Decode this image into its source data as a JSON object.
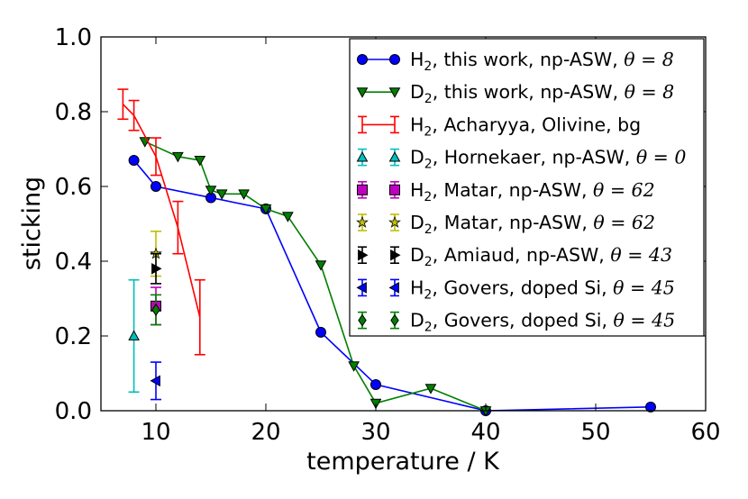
{
  "chart_data": {
    "type": "line",
    "title": "",
    "xlabel": "temperature / K",
    "ylabel": "sticking",
    "xlim": [
      5,
      60
    ],
    "ylim": [
      0.0,
      1.0
    ],
    "xticks": [
      10,
      20,
      30,
      40,
      50,
      60
    ],
    "xtick_labels": [
      "10",
      "20",
      "30",
      "40",
      "50",
      "60"
    ],
    "yticks": [
      0.0,
      0.2,
      0.4,
      0.6,
      0.8,
      1.0
    ],
    "ytick_labels": [
      "0.0",
      "0.2",
      "0.4",
      "0.6",
      "0.8",
      "1.0"
    ],
    "grid": false,
    "legend_position": "top-right",
    "series": [
      {
        "name": "H2, this work, np-ASW, θ = 8",
        "legend": {
          "species": "H",
          "sub": "2",
          "rest": ", this work, np-ASW, ",
          "theta": "θ = 8"
        },
        "color": "#0000ff",
        "marker": "circle",
        "line": true,
        "errorbars": false,
        "x": [
          8,
          10,
          15,
          20,
          25,
          30,
          40,
          55
        ],
        "y": [
          0.67,
          0.6,
          0.57,
          0.54,
          0.21,
          0.07,
          0.0,
          0.01
        ]
      },
      {
        "name": "D2, this work, np-ASW, θ = 8",
        "legend": {
          "species": "D",
          "sub": "2",
          "rest": ", this work, np-ASW, ",
          "theta": "θ = 8"
        },
        "color": "#008000",
        "marker": "triangle-down",
        "line": true,
        "errorbars": false,
        "x": [
          9,
          12,
          14,
          15,
          16,
          18,
          20,
          22,
          25,
          28,
          30,
          35,
          40
        ],
        "y": [
          0.72,
          0.68,
          0.67,
          0.59,
          0.58,
          0.58,
          0.54,
          0.52,
          0.39,
          0.12,
          0.02,
          0.06,
          0.0
        ]
      },
      {
        "name": "H2, Acharyya, Olivine, bg",
        "legend": {
          "species": "H",
          "sub": "2",
          "rest": ", Acharyya, Olivine, bg",
          "theta": ""
        },
        "color": "#ff0000",
        "marker": "none",
        "line": true,
        "errorbars": true,
        "x": [
          7,
          8,
          10,
          12,
          14
        ],
        "y": [
          0.82,
          0.79,
          0.68,
          0.49,
          0.25
        ],
        "err": [
          0.04,
          0.04,
          0.05,
          0.07,
          0.1
        ]
      },
      {
        "name": "D2, Hornekaer, np-ASW, θ = 0",
        "legend": {
          "species": "D",
          "sub": "2",
          "rest": ", Hornekaer, np-ASW, ",
          "theta": "θ = 0"
        },
        "color": "#00bfbf",
        "marker": "triangle-up",
        "line": false,
        "errorbars": true,
        "x": [
          8
        ],
        "y": [
          0.2
        ],
        "err": [
          0.15
        ]
      },
      {
        "name": "H2, Matar, np-ASW, θ = 62",
        "legend": {
          "species": "H",
          "sub": "2",
          "rest": ", Matar, np-ASW, ",
          "theta": "θ = 62"
        },
        "color": "#bf00bf",
        "marker": "square",
        "line": false,
        "errorbars": true,
        "x": [
          10
        ],
        "y": [
          0.28
        ],
        "err": [
          0.05
        ]
      },
      {
        "name": "D2, Matar, np-ASW, θ = 62",
        "legend": {
          "species": "D",
          "sub": "2",
          "rest": ", Matar, np-ASW, ",
          "theta": "θ = 62"
        },
        "color": "#bfbf00",
        "marker": "star",
        "line": false,
        "errorbars": true,
        "x": [
          10
        ],
        "y": [
          0.42
        ],
        "err": [
          0.06
        ]
      },
      {
        "name": "D2, Amiaud, np-ASW, θ = 43",
        "legend": {
          "species": "D",
          "sub": "2",
          "rest": ", Amiaud, np-ASW, ",
          "theta": "θ = 43"
        },
        "color": "#000000",
        "marker": "triangle-right",
        "line": false,
        "errorbars": true,
        "x": [
          10
        ],
        "y": [
          0.38
        ],
        "err": [
          0.04
        ]
      },
      {
        "name": "H2, Govers, doped Si, θ = 45",
        "legend": {
          "species": "H",
          "sub": "2",
          "rest": ", Govers, doped Si, ",
          "theta": "θ = 45"
        },
        "color": "#0000ff",
        "marker": "triangle-left",
        "line": false,
        "errorbars": true,
        "x": [
          10
        ],
        "y": [
          0.08
        ],
        "err": [
          0.05
        ]
      },
      {
        "name": "D2, Govers, doped Si, θ = 45",
        "legend": {
          "species": "D",
          "sub": "2",
          "rest": ", Govers, doped Si, ",
          "theta": "θ = 45"
        },
        "color": "#008000",
        "marker": "diamond",
        "line": false,
        "errorbars": true,
        "x": [
          10
        ],
        "y": [
          0.27
        ],
        "err": [
          0.04
        ]
      }
    ]
  }
}
